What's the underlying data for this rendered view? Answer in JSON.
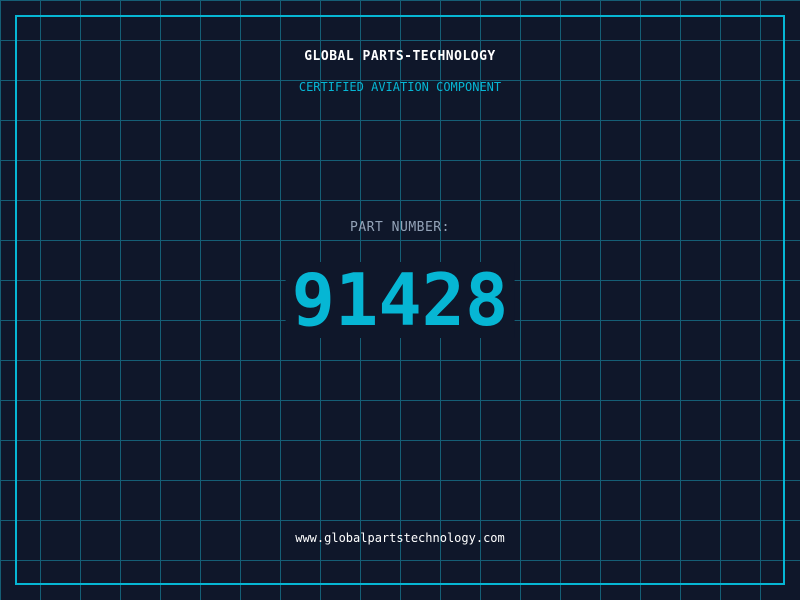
{
  "header": {
    "brand": "GLOBAL PARTS-TECHNOLOGY",
    "subtitle": "CERTIFIED AVIATION COMPONENT"
  },
  "part": {
    "label": "PART NUMBER:",
    "number": "91428"
  },
  "footer": {
    "url": "www.globalpartstechnology.com"
  },
  "colors": {
    "background": "#0f172a",
    "accent": "#06b6d4",
    "grid": "#155e75"
  }
}
